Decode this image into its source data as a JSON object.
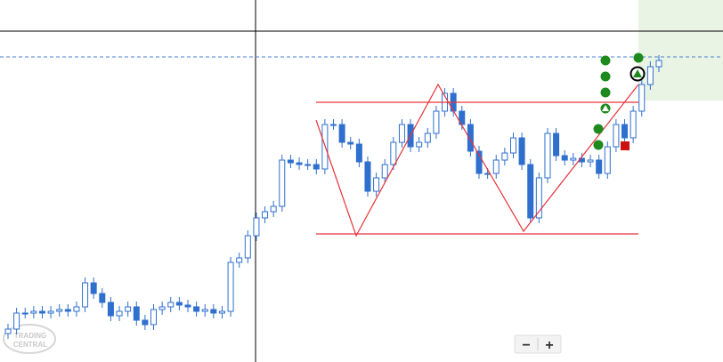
{
  "chart_data": {
    "type": "candlestick",
    "open": [
      32,
      37,
      55,
      55,
      57,
      55,
      57,
      59,
      57,
      62,
      89,
      77,
      67,
      52,
      57,
      62,
      47,
      42,
      59,
      62,
      67,
      64,
      62,
      57,
      59,
      55,
      57,
      112,
      117,
      142,
      162,
      169,
      175,
      227,
      224,
      222,
      222,
      217,
      267,
      267,
      247,
      245,
      225,
      192,
      207,
      222,
      247,
      267,
      242,
      247,
      257,
      282,
      302,
      282,
      267,
      237,
      212,
      212,
      227,
      235,
      252,
      222,
      162,
      207,
      257,
      232,
      227,
      229,
      225,
      227,
      212,
      242,
      267,
      252,
      282,
      312,
      332
    ],
    "high": [
      43,
      61,
      61,
      63,
      63,
      63,
      65,
      65,
      68,
      95,
      95,
      83,
      73,
      63,
      68,
      68,
      53,
      65,
      68,
      73,
      73,
      70,
      68,
      65,
      65,
      63,
      118,
      123,
      148,
      168,
      175,
      181,
      233,
      233,
      230,
      228,
      228,
      273,
      273,
      273,
      253,
      251,
      231,
      213,
      228,
      253,
      273,
      273,
      253,
      263,
      288,
      308,
      308,
      288,
      273,
      243,
      218,
      233,
      241,
      258,
      258,
      228,
      213,
      263,
      263,
      238,
      235,
      235,
      233,
      233,
      248,
      273,
      273,
      288,
      318,
      338,
      345
    ],
    "low": [
      26,
      31,
      49,
      49,
      49,
      49,
      51,
      51,
      51,
      56,
      71,
      61,
      46,
      46,
      51,
      41,
      36,
      36,
      53,
      56,
      58,
      56,
      51,
      51,
      49,
      49,
      51,
      106,
      111,
      136,
      156,
      163,
      169,
      218,
      216,
      216,
      211,
      211,
      261,
      241,
      239,
      219,
      186,
      186,
      201,
      216,
      241,
      236,
      236,
      241,
      251,
      276,
      276,
      261,
      231,
      206,
      206,
      206,
      221,
      229,
      216,
      156,
      156,
      201,
      226,
      221,
      221,
      219,
      219,
      206,
      206,
      236,
      246,
      246,
      276,
      306,
      326
    ],
    "close": [
      37,
      55,
      55,
      57,
      55,
      57,
      59,
      57,
      62,
      89,
      77,
      67,
      52,
      57,
      62,
      47,
      42,
      59,
      62,
      67,
      64,
      62,
      57,
      59,
      55,
      57,
      112,
      117,
      142,
      162,
      169,
      175,
      227,
      224,
      222,
      222,
      217,
      267,
      267,
      247,
      245,
      225,
      192,
      207,
      222,
      247,
      267,
      242,
      247,
      257,
      282,
      302,
      282,
      267,
      237,
      212,
      212,
      227,
      235,
      252,
      222,
      162,
      207,
      257,
      232,
      227,
      229,
      225,
      227,
      212,
      242,
      267,
      252,
      282,
      312,
      332,
      339
    ],
    "ylim": [
      0,
      407
    ],
    "up_color": "#ffffff",
    "down_color": "#2f6fce",
    "outline_color": "#2f6fce"
  },
  "watermark": {
    "line1": "TRADING",
    "line2": "CENTRAL"
  },
  "zoom_controls": {
    "minus": "−",
    "plus": "+"
  }
}
